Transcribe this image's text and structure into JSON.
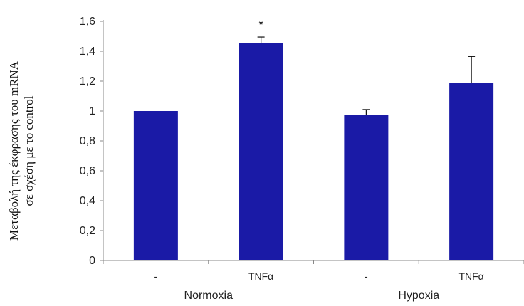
{
  "chart_data": {
    "type": "bar",
    "ylabel_lines": [
      "Μεταβολή της έκφρασης  του mRNA",
      "σε σχέση με το  control"
    ],
    "ylim": [
      0,
      1.6
    ],
    "yticks": [
      "0",
      "0,2",
      "0,4",
      "0,6",
      "0,8",
      "1",
      "1,2",
      "1,4",
      "1,6"
    ],
    "categories": [
      "-",
      "TNFα",
      "-",
      "TNFα"
    ],
    "groups": [
      "Normoxia",
      "Hypoxia"
    ],
    "values": [
      1.0,
      1.455,
      0.975,
      1.19
    ],
    "errors": [
      0,
      0.04,
      0.035,
      0.175
    ],
    "annotations": [
      "",
      "*",
      "",
      ""
    ],
    "bar_color": "#1a1aa6",
    "grid": false
  }
}
